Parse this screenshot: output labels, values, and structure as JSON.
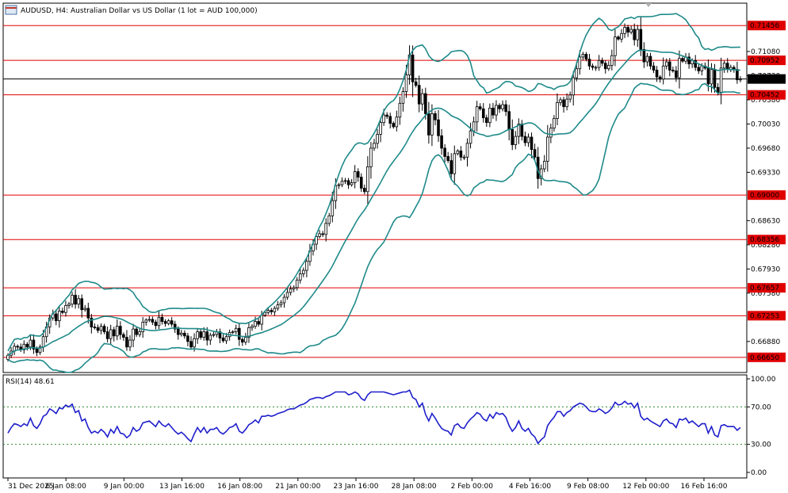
{
  "header": {
    "symbol_line": "AUDUSD, H4:  Australian Dollar vs US Dollar (1 lot = AUD 100,000)"
  },
  "rsi_panel": {
    "label": "RSI(14) 48.61"
  },
  "colors": {
    "bull_candle": "#000000",
    "bear_candle": "#000000",
    "bollinger": "#1f8a8a",
    "level_line": "#e00000",
    "price_line": "#000000",
    "rsi_line": "#1f1fcc",
    "rsi_levels": "#2e8b2e",
    "axis_text": "#000000"
  },
  "chart_data": [
    {
      "type": "candlestick",
      "title": "AUDUSD, H4:  Australian Dollar vs US Dollar (1 lot = AUD 100,000)",
      "ylim": [
        0.6643,
        0.7178
      ],
      "price_ticks": [
        "0.71080",
        "0.70730",
        "0.70380",
        "0.70030",
        "0.69680",
        "0.69330",
        "0.68630",
        "0.68280",
        "0.67930",
        "0.67580",
        "0.66880"
      ],
      "time_ticks": [
        "31 Dec 2025",
        "6 Jan 08:00",
        "9 Jan 00:00",
        "13 Jan 16:00",
        "16 Jan 08:00",
        "21 Jan 00:00",
        "23 Jan 16:00",
        "28 Jan 08:00",
        "2 Feb 00:00",
        "4 Feb 16:00",
        "9 Feb 08:00",
        "12 Feb 00:00",
        "16 Feb 16:00"
      ],
      "horizontal_levels": [
        {
          "label": "0.71456",
          "value": 0.71456
        },
        {
          "label": "0.70952",
          "value": 0.70952
        },
        {
          "label": "0.70452",
          "value": 0.70452
        },
        {
          "label": "0.69000",
          "value": 0.69
        },
        {
          "label": "0.68356",
          "value": 0.68356
        },
        {
          "label": "0.67657",
          "value": 0.67657
        },
        {
          "label": "0.67253",
          "value": 0.67253
        },
        {
          "label": "0.66650",
          "value": 0.6665
        }
      ],
      "current_price": {
        "label": "0.70682",
        "value": 0.70682
      },
      "series": [
        {
          "name": "AUDUSD close (approx.)",
          "values": [
            0.6668,
            0.6674,
            0.6681,
            0.668,
            0.6676,
            0.6684,
            0.668,
            0.669,
            0.6677,
            0.6672,
            0.668,
            0.6695,
            0.6709,
            0.6722,
            0.6728,
            0.6718,
            0.6732,
            0.673,
            0.674,
            0.6742,
            0.6755,
            0.6742,
            0.675,
            0.6734,
            0.6736,
            0.6722,
            0.6709,
            0.6708,
            0.6704,
            0.671,
            0.6702,
            0.6692,
            0.6705,
            0.6696,
            0.671,
            0.6698,
            0.6694,
            0.668,
            0.669,
            0.6706,
            0.6698,
            0.6702,
            0.6716,
            0.6719,
            0.672,
            0.6716,
            0.6711,
            0.6723,
            0.6717,
            0.6714,
            0.6718,
            0.6713,
            0.6706,
            0.6698,
            0.67,
            0.6696,
            0.6688,
            0.668,
            0.6692,
            0.6702,
            0.6694,
            0.6702,
            0.669,
            0.6697,
            0.6698,
            0.6702,
            0.6693,
            0.6689,
            0.6695,
            0.6701,
            0.6702,
            0.6707,
            0.6691,
            0.6687,
            0.6694,
            0.6708,
            0.671,
            0.6717,
            0.6713,
            0.6726,
            0.673,
            0.6733,
            0.6731,
            0.6736,
            0.6741,
            0.6744,
            0.6752,
            0.6759,
            0.6764,
            0.6766,
            0.6777,
            0.6786,
            0.6791,
            0.6804,
            0.6819,
            0.6829,
            0.684,
            0.6844,
            0.6843,
            0.6859,
            0.687,
            0.6892,
            0.6914,
            0.6915,
            0.692,
            0.6921,
            0.6915,
            0.6918,
            0.6934,
            0.6926,
            0.691,
            0.6905,
            0.6941,
            0.6968,
            0.6975,
            0.6988,
            0.7005,
            0.7016,
            0.7014,
            0.7004,
            0.6999,
            0.7013,
            0.7033,
            0.705,
            0.7074,
            0.7103,
            0.7064,
            0.7059,
            0.7032,
            0.7047,
            0.7018,
            0.6987,
            0.7018,
            0.7009,
            0.6986,
            0.6968,
            0.6956,
            0.695,
            0.6931,
            0.696,
            0.6964,
            0.6955,
            0.6955,
            0.6975,
            0.6993,
            0.7006,
            0.7028,
            0.7025,
            0.7012,
            0.7005,
            0.7026,
            0.7016,
            0.703,
            0.7025,
            0.7031,
            0.7021,
            0.6995,
            0.6973,
            0.6985,
            0.7003,
            0.6985,
            0.6976,
            0.6984,
            0.6966,
            0.6955,
            0.6924,
            0.6938,
            0.6949,
            0.6984,
            0.6997,
            0.7011,
            0.7034,
            0.7038,
            0.7028,
            0.7039,
            0.7045,
            0.707,
            0.7083,
            0.71,
            0.7104,
            0.7097,
            0.7087,
            0.7085,
            0.7085,
            0.7095,
            0.7091,
            0.7083,
            0.7088,
            0.7102,
            0.7129,
            0.7126,
            0.7134,
            0.7143,
            0.7136,
            0.714,
            0.7125,
            0.714,
            0.7111,
            0.7093,
            0.7101,
            0.7087,
            0.7081,
            0.7071,
            0.7068,
            0.7087,
            0.7093,
            0.7081,
            0.708,
            0.707,
            0.7098,
            0.7094,
            0.71,
            0.709,
            0.7095,
            0.7085,
            0.708,
            0.7087,
            0.7084,
            0.7061,
            0.7082,
            0.7056,
            0.7049,
            0.7084,
            0.7091,
            0.7082,
            0.7085,
            0.7082,
            0.7067,
            0.7068
          ]
        }
      ]
    },
    {
      "type": "line",
      "title": "RSI(14) 48.61",
      "ylim": [
        0,
        100
      ],
      "ticks": [
        "100.00",
        "70.00",
        "30.00",
        "0.00"
      ],
      "levels": [
        70,
        30
      ],
      "series": [
        {
          "name": "RSI(14)",
          "values": [
            42,
            48,
            52,
            51,
            49,
            52,
            50,
            58,
            50,
            47,
            52,
            60,
            62,
            68,
            66,
            63,
            69,
            68,
            72,
            70,
            73,
            64,
            66,
            55,
            57,
            48,
            42,
            44,
            42,
            46,
            43,
            38,
            46,
            42,
            49,
            42,
            41,
            37,
            40,
            48,
            44,
            46,
            53,
            54,
            55,
            52,
            49,
            55,
            51,
            49,
            52,
            48,
            44,
            41,
            43,
            40,
            36,
            33,
            41,
            48,
            43,
            48,
            42,
            46,
            46,
            48,
            43,
            41,
            44,
            48,
            49,
            52,
            44,
            42,
            46,
            51,
            53,
            56,
            53,
            60,
            60,
            61,
            60,
            61,
            63,
            64,
            65,
            67,
            68,
            68,
            70,
            72,
            73,
            75,
            78,
            79,
            80,
            80,
            79,
            81,
            82,
            84,
            86,
            86,
            86,
            86,
            83,
            84,
            86,
            84,
            79,
            77,
            83,
            86,
            86,
            86,
            86,
            86,
            85,
            84,
            83,
            84,
            85,
            86,
            86,
            88,
            80,
            78,
            70,
            74,
            62,
            55,
            63,
            58,
            52,
            47,
            45,
            44,
            40,
            50,
            52,
            48,
            47,
            53,
            57,
            60,
            64,
            62,
            57,
            55,
            62,
            58,
            64,
            62,
            63,
            59,
            50,
            44,
            48,
            55,
            47,
            44,
            47,
            41,
            38,
            31,
            35,
            38,
            50,
            55,
            59,
            65,
            65,
            60,
            64,
            66,
            70,
            72,
            74,
            73,
            70,
            66,
            65,
            65,
            68,
            66,
            63,
            65,
            69,
            75,
            72,
            73,
            76,
            73,
            74,
            69,
            74,
            60,
            56,
            58,
            55,
            53,
            51,
            49,
            55,
            57,
            53,
            52,
            48,
            57,
            56,
            58,
            53,
            55,
            52,
            49,
            52,
            52,
            42,
            49,
            40,
            38,
            50,
            51,
            49,
            49,
            49,
            45,
            48
          ]
        }
      ]
    }
  ]
}
